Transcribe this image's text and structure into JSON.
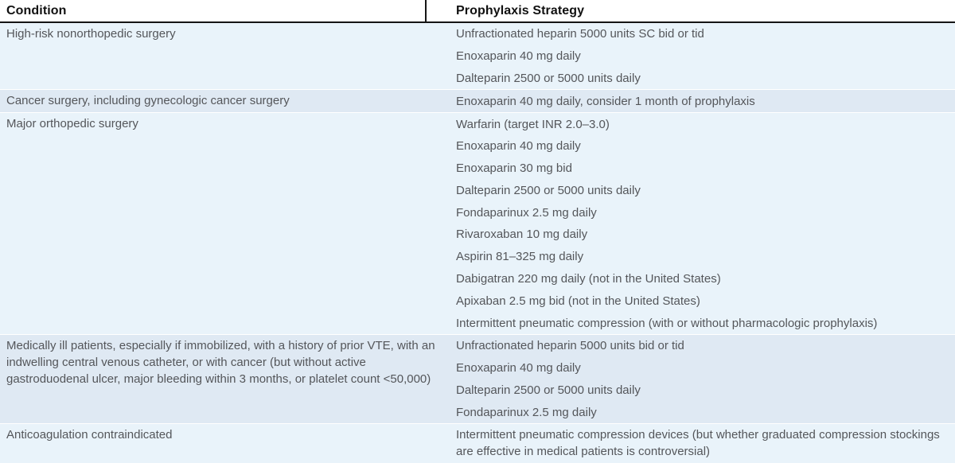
{
  "table": {
    "columns": [
      {
        "label": "Condition"
      },
      {
        "label": "Prophylaxis Strategy"
      }
    ],
    "rows": [
      {
        "shade": "light",
        "condition": "High-risk nonorthopedic surgery",
        "strategies": [
          "Unfractionated heparin 5000 units SC bid or tid",
          "Enoxaparin 40 mg daily",
          "Dalteparin 2500 or 5000 units daily"
        ]
      },
      {
        "shade": "dark",
        "condition": "Cancer surgery, including gynecologic cancer surgery",
        "strategies": [
          "Enoxaparin 40 mg daily, consider 1 month of prophylaxis"
        ]
      },
      {
        "shade": "light",
        "condition": "Major orthopedic surgery",
        "strategies": [
          "Warfarin (target INR 2.0–3.0)",
          "Enoxaparin 40 mg daily",
          "Enoxaparin 30 mg bid",
          "Dalteparin 2500 or 5000 units daily",
          "Fondaparinux 2.5 mg daily",
          "Rivaroxaban 10 mg daily",
          "Aspirin 81–325 mg daily",
          "Dabigatran 220 mg daily (not in the United States)",
          "Apixaban 2.5 mg bid (not in the United States)",
          "Intermittent pneumatic compression (with or without pharmacologic prophylaxis)"
        ]
      },
      {
        "shade": "dark",
        "condition": "Medically ill patients, especially if immobilized, with a history of prior VTE, with an indwelling central venous catheter, or with cancer (but without active gastroduodenal ulcer, major bleeding within 3 months, or platelet count <50,000)",
        "strategies": [
          "Unfractionated heparin 5000 units bid or tid",
          "Enoxaparin 40 mg daily",
          "Dalteparin 2500 or 5000 units daily",
          "Fondaparinux 2.5 mg daily"
        ]
      },
      {
        "shade": "light",
        "condition": "Anticoagulation contraindicated",
        "strategies": [
          "Intermittent pneumatic compression devices (but whether graduated compression stockings are effective in medical patients is controversial)"
        ]
      }
    ],
    "colors": {
      "row_light": "#e9f3fa",
      "row_dark": "#dfe9f3",
      "header_bg": "#ffffff",
      "header_text": "#111111",
      "body_text": "#54565a",
      "rule": "#151515"
    }
  }
}
